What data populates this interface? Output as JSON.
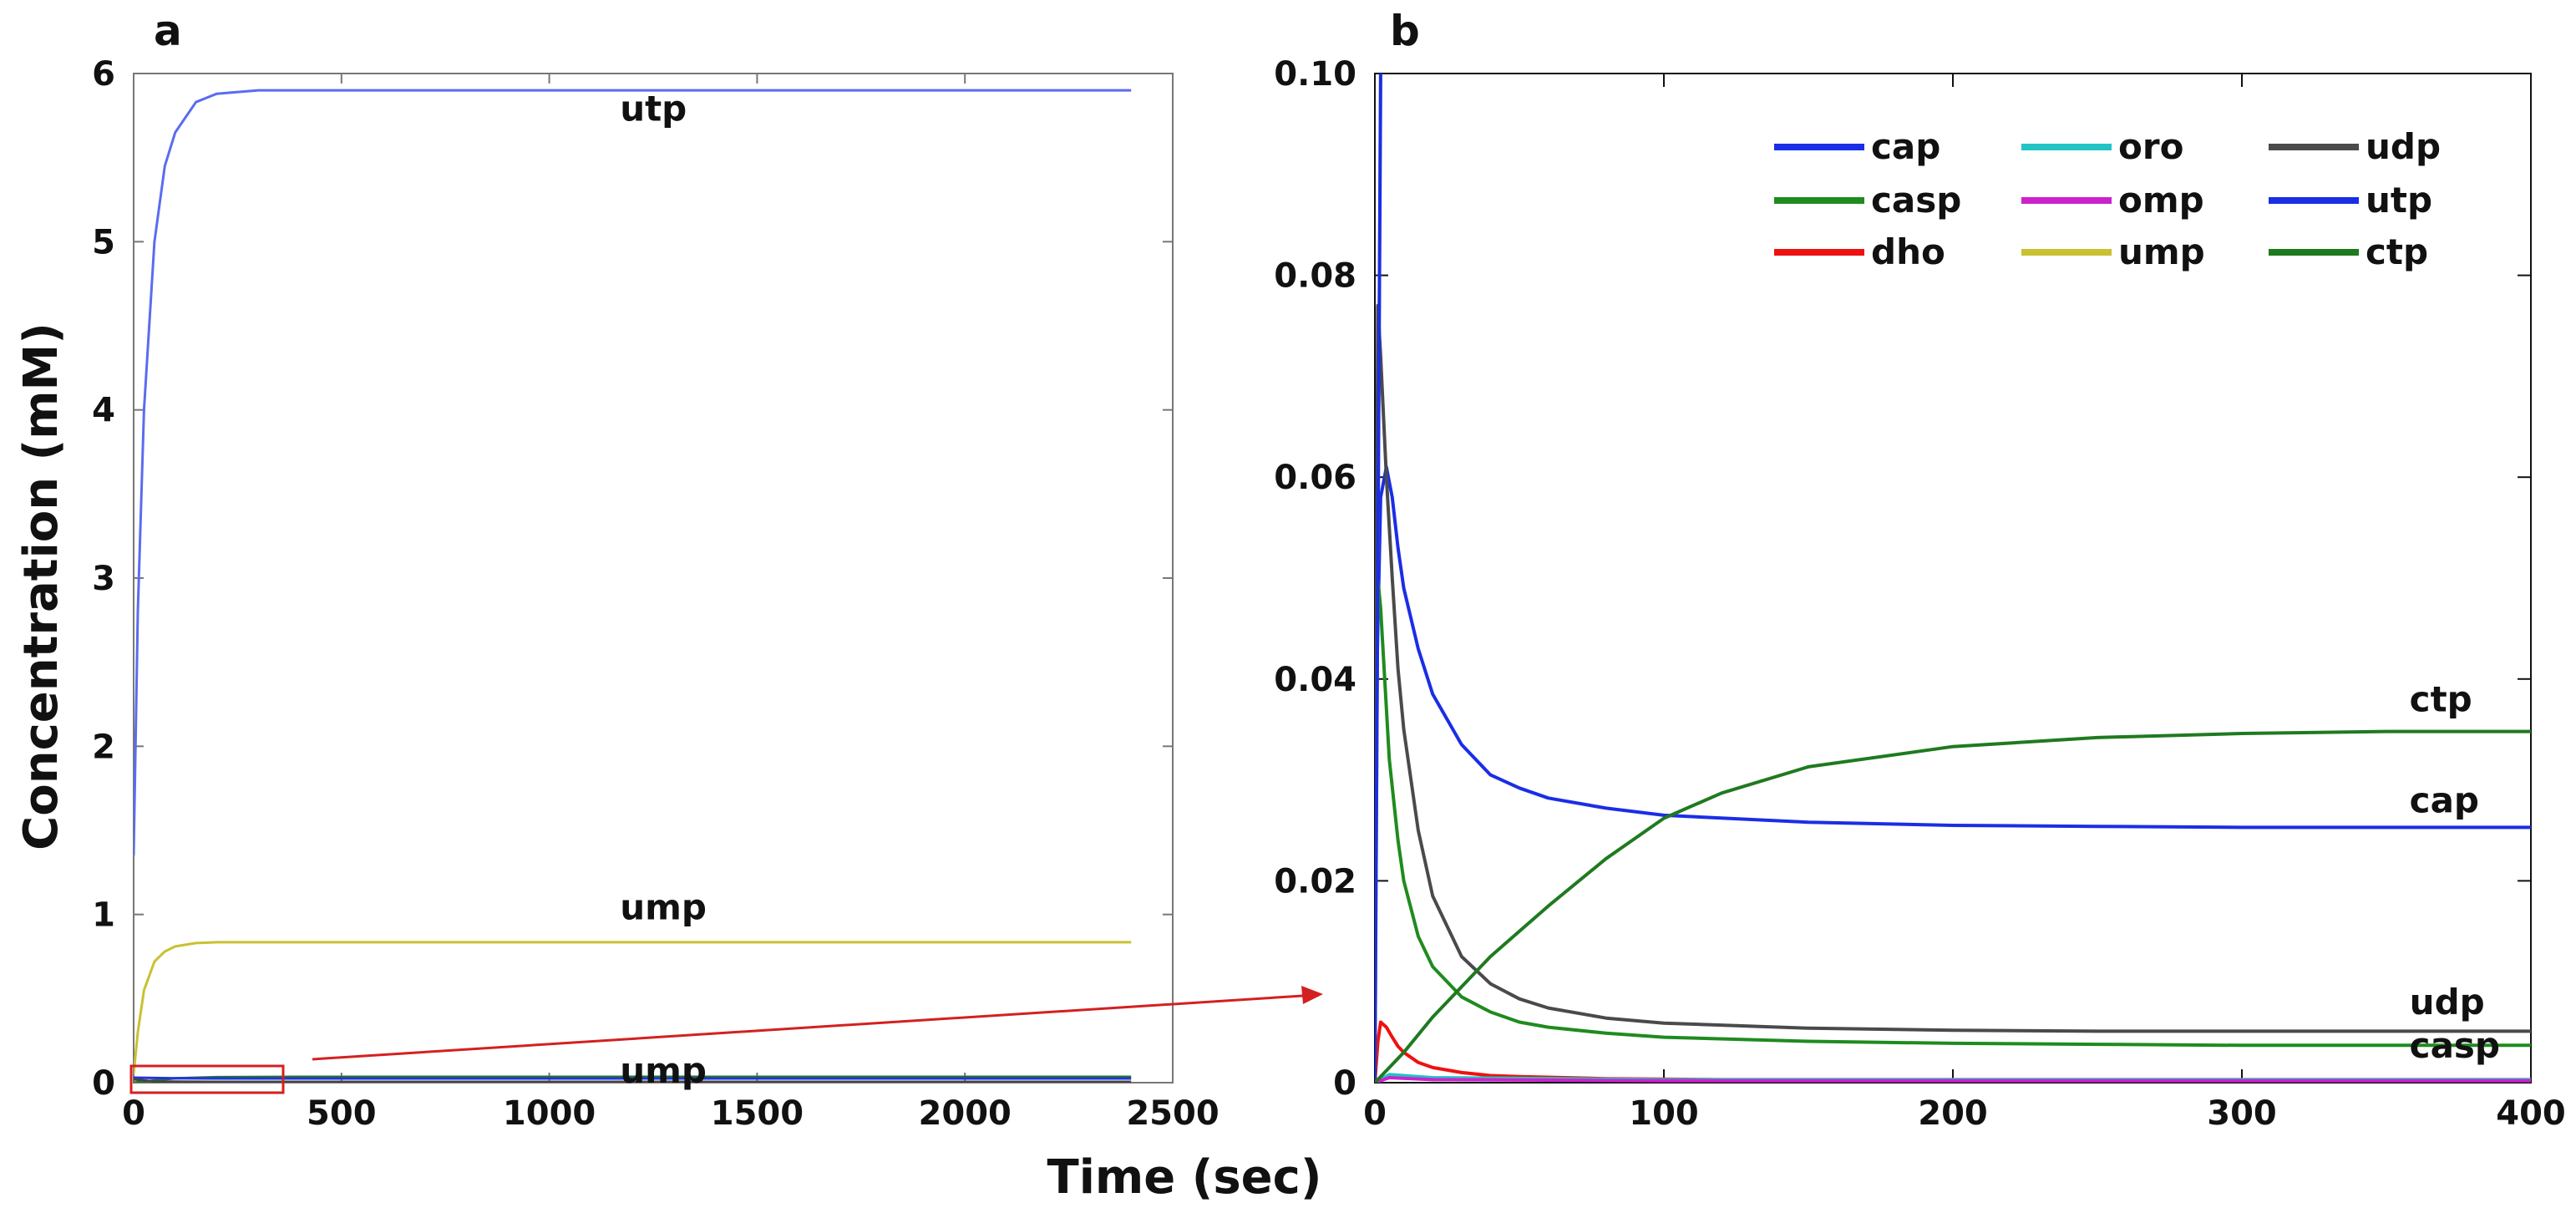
{
  "figure": {
    "shared_xlabel": "Time (sec)",
    "shared_ylabel": "Concentration (mM)"
  },
  "chart_data": [
    {
      "panel": "a",
      "type": "line",
      "xlim": [
        0,
        2500
      ],
      "ylim": [
        0,
        6
      ],
      "xticks": [
        0,
        500,
        1000,
        1500,
        2000,
        2500
      ],
      "yticks": [
        0,
        1,
        2,
        3,
        4,
        5,
        6
      ],
      "series": [
        {
          "name": "utp",
          "color": "#5a6cf0",
          "x": [
            0,
            10,
            25,
            50,
            75,
            100,
            150,
            200,
            300,
            400,
            1000,
            2400
          ],
          "y": [
            1.35,
            2.8,
            4.0,
            5.0,
            5.45,
            5.65,
            5.83,
            5.88,
            5.9,
            5.9,
            5.9,
            5.9
          ]
        },
        {
          "name": "ump",
          "color": "#c9c132",
          "x": [
            0,
            10,
            25,
            50,
            75,
            100,
            150,
            200,
            300,
            400,
            1000,
            2400
          ],
          "y": [
            0.05,
            0.3,
            0.55,
            0.72,
            0.78,
            0.81,
            0.83,
            0.835,
            0.835,
            0.835,
            0.835,
            0.835
          ]
        },
        {
          "name": "ctp",
          "color": "#1f7a1f",
          "x": [
            0,
            100,
            200,
            400,
            2400
          ],
          "y": [
            0.0,
            0.026,
            0.033,
            0.035,
            0.035
          ]
        },
        {
          "name": "cap",
          "color": "#2233dd",
          "x": [
            0,
            100,
            200,
            400,
            2400
          ],
          "y": [
            0.03,
            0.026,
            0.025,
            0.025,
            0.025
          ]
        },
        {
          "name": "udp",
          "color": "#444444",
          "x": [
            0,
            50,
            200,
            400,
            2400
          ],
          "y": [
            0.02,
            0.007,
            0.005,
            0.005,
            0.005
          ]
        }
      ],
      "annotations": [
        {
          "text": "utp",
          "x": 1170,
          "y": 5.72
        },
        {
          "text": "ump",
          "x": 1170,
          "y": 0.0
        },
        {
          "text": "ump",
          "x": 1170,
          "y": 0.97
        }
      ],
      "inset_box": {
        "x_range": [
          0,
          400
        ],
        "y_range": [
          -0.05,
          0.1
        ]
      }
    },
    {
      "panel": "b",
      "type": "line",
      "xlim": [
        0,
        400
      ],
      "ylim": [
        0,
        0.1
      ],
      "xticks": [
        0,
        100,
        200,
        300,
        400
      ],
      "yticks": [
        0,
        0.02,
        0.04,
        0.06,
        0.08,
        0.1
      ],
      "ytick_labels": [
        "0",
        "0.02",
        "0.04",
        "0.06",
        "0.08",
        "0.10"
      ],
      "legend": [
        "cap",
        "casp",
        "dho",
        "oro",
        "omp",
        "ump",
        "udp",
        "utp",
        "ctp"
      ],
      "series": [
        {
          "name": "cap",
          "color": "#1a2ee6",
          "x": [
            0,
            1,
            2,
            4,
            6,
            8,
            10,
            15,
            20,
            30,
            40,
            50,
            60,
            80,
            100,
            150,
            200,
            250,
            300,
            350,
            400
          ],
          "y": [
            0.03,
            0.045,
            0.058,
            0.061,
            0.058,
            0.053,
            0.049,
            0.043,
            0.0385,
            0.0335,
            0.0305,
            0.0292,
            0.0282,
            0.0272,
            0.0265,
            0.0258,
            0.0255,
            0.0254,
            0.0253,
            0.0253,
            0.0253
          ]
        },
        {
          "name": "casp",
          "color": "#1f8b1f",
          "x": [
            0,
            1,
            2,
            3,
            5,
            8,
            10,
            15,
            20,
            30,
            40,
            50,
            60,
            80,
            100,
            150,
            200,
            250,
            300,
            400
          ],
          "y": [
            0.01,
            0.05,
            0.047,
            0.042,
            0.032,
            0.024,
            0.02,
            0.0145,
            0.0115,
            0.0085,
            0.007,
            0.006,
            0.0055,
            0.0049,
            0.0045,
            0.0041,
            0.0039,
            0.0038,
            0.0037,
            0.0037
          ]
        },
        {
          "name": "dho",
          "color": "#ee1111",
          "x": [
            0,
            1,
            2,
            4,
            6,
            8,
            10,
            15,
            20,
            30,
            40,
            50,
            80,
            120,
            200,
            400
          ],
          "y": [
            0.0,
            0.004,
            0.006,
            0.0055,
            0.0045,
            0.0036,
            0.003,
            0.002,
            0.0015,
            0.001,
            0.0007,
            0.0006,
            0.0004,
            0.0003,
            0.0003,
            0.0003
          ]
        },
        {
          "name": "oro",
          "color": "#22c4c4",
          "x": [
            0,
            5,
            20,
            100,
            400
          ],
          "y": [
            0.0,
            0.0008,
            0.0005,
            0.0003,
            0.0003
          ]
        },
        {
          "name": "omp",
          "color": "#cc22cc",
          "x": [
            0,
            5,
            20,
            100,
            400
          ],
          "y": [
            0.0,
            0.0005,
            0.0003,
            0.0002,
            0.0002
          ]
        },
        {
          "name": "ump",
          "color": "#c9c132",
          "x": [
            0,
            1,
            2
          ],
          "y": [
            0.0,
            0.05,
            0.1
          ]
        },
        {
          "name": "udp",
          "color": "#4a4a4a",
          "x": [
            0,
            1,
            2,
            4,
            6,
            8,
            10,
            15,
            20,
            30,
            40,
            50,
            60,
            80,
            100,
            150,
            200,
            250,
            300,
            400
          ],
          "y": [
            0.013,
            0.077,
            0.072,
            0.06,
            0.05,
            0.041,
            0.035,
            0.025,
            0.0185,
            0.0125,
            0.0098,
            0.0083,
            0.0074,
            0.0064,
            0.0059,
            0.0054,
            0.0052,
            0.0051,
            0.0051,
            0.0051
          ]
        },
        {
          "name": "utp",
          "color": "#1a2ee6",
          "x": [
            0,
            1,
            2
          ],
          "y": [
            0.0,
            0.05,
            0.1
          ]
        },
        {
          "name": "ctp",
          "color": "#1f7a1f",
          "x": [
            0,
            10,
            20,
            30,
            40,
            50,
            60,
            80,
            100,
            120,
            150,
            200,
            250,
            300,
            350,
            400
          ],
          "y": [
            0.0,
            0.003,
            0.0065,
            0.0095,
            0.0125,
            0.015,
            0.0175,
            0.0222,
            0.0262,
            0.0287,
            0.0313,
            0.0333,
            0.0342,
            0.0346,
            0.0348,
            0.0348
          ]
        }
      ],
      "annotations": [
        {
          "text": "ctp",
          "x": 358,
          "y": 0.0368
        },
        {
          "text": "cap",
          "x": 358,
          "y": 0.0268
        },
        {
          "text": "udp",
          "x": 358,
          "y": 0.0068
        },
        {
          "text": "casp",
          "x": 358,
          "y": 0.0025
        }
      ]
    }
  ]
}
